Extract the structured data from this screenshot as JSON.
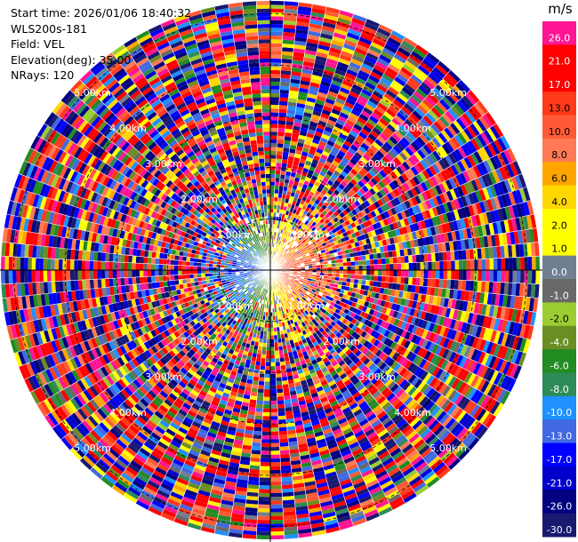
{
  "info": {
    "start_time": "Start time: 2026/01/06 18:40:32",
    "instrument": "WLS200s-181",
    "field": "Field: VEL",
    "elevation": "Elevation(deg): 35.00",
    "nrays": "NRays: 120"
  },
  "colorbar": {
    "unit": "m/s",
    "bins": [
      {
        "label": "26.0",
        "color": "#ff1493"
      },
      {
        "label": "21.0",
        "color": "#ff0000"
      },
      {
        "label": "17.0",
        "color": "#ff0000"
      },
      {
        "label": "13.0",
        "color": "#ff3a1a"
      },
      {
        "label": "10.0",
        "color": "#ff5a35"
      },
      {
        "label": "8.0",
        "color": "#ff7a55"
      },
      {
        "label": "6.0",
        "color": "#ffa500"
      },
      {
        "label": "4.0",
        "color": "#ffd700"
      },
      {
        "label": "2.0",
        "color": "#ffff00"
      },
      {
        "label": "1.0",
        "color": "#ffff00"
      },
      {
        "label": "0.0",
        "color": "#708090"
      },
      {
        "label": "-1.0",
        "color": "#696969"
      },
      {
        "label": "-2.0",
        "color": "#9acd32"
      },
      {
        "label": "-4.0",
        "color": "#6b8e23"
      },
      {
        "label": "-6.0",
        "color": "#228b22"
      },
      {
        "label": "-8.0",
        "color": "#2e8b57"
      },
      {
        "label": "-10.0",
        "color": "#1e90ff"
      },
      {
        "label": "-13.0",
        "color": "#4169e1"
      },
      {
        "label": "-17.0",
        "color": "#0000ff"
      },
      {
        "label": "-21.0",
        "color": "#0000cd"
      },
      {
        "label": "-26.0",
        "color": "#000080"
      },
      {
        "label": "-30.0",
        "color": "#191970"
      }
    ]
  },
  "chart_data": {
    "type": "heatmap",
    "title": "",
    "projection": "polar (PPI)",
    "field": "VEL",
    "unit": "m/s",
    "nrays": 120,
    "range_rings_km": [
      1.0,
      2.0,
      3.0,
      4.0,
      5.0
    ],
    "range_ring_labels": [
      "1.00km",
      "2.00km",
      "3.00km",
      "4.00km",
      "5.00km"
    ],
    "max_range_km": 5.25,
    "color_scale_min": -30.0,
    "color_scale_max": 26.0,
    "near_range_pattern": "positive (red/orange) velocities east of radar, negative (blue) velocities west; noisy random colors beyond ~1.5 km"
  }
}
